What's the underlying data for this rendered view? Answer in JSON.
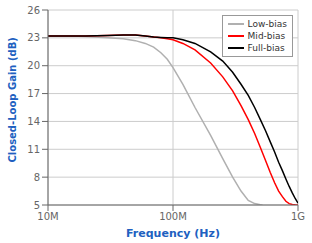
{
  "chart_data": {
    "type": "line",
    "xlabel": "Frequency (Hz)",
    "ylabel": "Closed-Loop Gain (dB)",
    "log": "x",
    "grid": true,
    "legend": "upper right",
    "xlim": [
      10000000.0,
      1000000000.0
    ],
    "ylim": [
      5,
      26
    ],
    "yticks": [
      5,
      8,
      11,
      14,
      17,
      20,
      23,
      26
    ],
    "xticks": [
      {
        "value": 10000000.0,
        "label": "10M"
      },
      {
        "value": 100000000.0,
        "label": "100M"
      },
      {
        "value": 1000000000.0,
        "label": "1G"
      }
    ],
    "series": [
      {
        "name": "Low-bias",
        "color": "#b0b0b0",
        "x": [
          10000000.0,
          15000000.0,
          20000000.0,
          30000000.0,
          40000000.0,
          50000000.0,
          60000000.0,
          70000000.0,
          80000000.0,
          90000000.0,
          100000000.0,
          120000000.0,
          150000000.0,
          200000000.0,
          250000000.0,
          300000000.0,
          350000000.0,
          400000000.0,
          450000000.0,
          500000000.0,
          520000000.0
        ],
        "values": [
          23.2,
          23.2,
          23.15,
          23.0,
          22.9,
          22.7,
          22.4,
          22.0,
          21.4,
          20.7,
          19.8,
          18.0,
          15.5,
          12.5,
          10.0,
          8.0,
          6.5,
          5.5,
          5.15,
          5.02,
          5.0
        ]
      },
      {
        "name": "Mid-bias",
        "color": "#ff0000",
        "x": [
          10000000.0,
          15000000.0,
          20000000.0,
          30000000.0,
          40000000.0,
          50000000.0,
          60000000.0,
          70000000.0,
          80000000.0,
          90000000.0,
          100000000.0,
          120000000.0,
          150000000.0,
          200000000.0,
          250000000.0,
          300000000.0,
          350000000.0,
          400000000.0,
          450000000.0,
          500000000.0,
          550000000.0,
          600000000.0,
          650000000.0,
          700000000.0,
          750000000.0,
          800000000.0,
          850000000.0,
          900000000.0,
          950000000.0,
          1000000000.0
        ],
        "values": [
          23.2,
          23.2,
          23.2,
          23.25,
          23.3,
          23.3,
          23.2,
          23.1,
          23.0,
          22.9,
          22.8,
          22.4,
          21.7,
          20.3,
          18.8,
          17.3,
          15.7,
          14.2,
          12.7,
          11.2,
          9.8,
          8.5,
          7.4,
          6.5,
          5.9,
          5.4,
          5.15,
          5.05,
          5.02,
          5.0
        ]
      },
      {
        "name": "Full-bias",
        "color": "#000000",
        "x": [
          10000000.0,
          15000000.0,
          20000000.0,
          30000000.0,
          40000000.0,
          50000000.0,
          60000000.0,
          70000000.0,
          80000000.0,
          90000000.0,
          100000000.0,
          120000000.0,
          150000000.0,
          200000000.0,
          250000000.0,
          300000000.0,
          350000000.0,
          400000000.0,
          450000000.0,
          500000000.0,
          550000000.0,
          600000000.0,
          650000000.0,
          700000000.0,
          750000000.0,
          800000000.0,
          850000000.0,
          900000000.0,
          950000000.0,
          1000000000.0
        ],
        "values": [
          23.2,
          23.2,
          23.2,
          23.25,
          23.3,
          23.3,
          23.2,
          23.1,
          23.05,
          23.0,
          23.0,
          22.8,
          22.4,
          21.5,
          20.5,
          19.3,
          18.0,
          16.8,
          15.5,
          14.2,
          13.0,
          11.8,
          10.7,
          9.6,
          8.7,
          7.8,
          7.0,
          6.3,
          5.7,
          5.2
        ]
      }
    ]
  }
}
